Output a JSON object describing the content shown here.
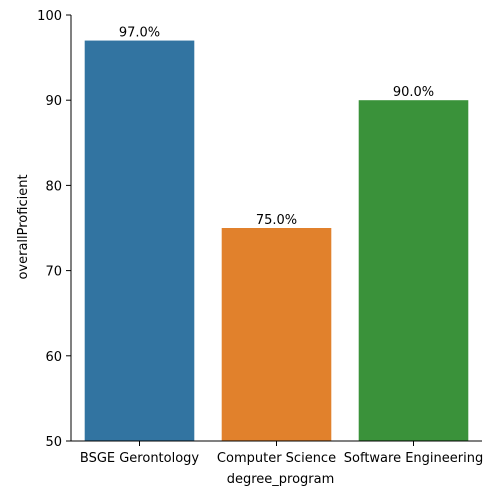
{
  "chart_data": {
    "type": "bar",
    "categories": [
      "BSGE Gerontology",
      "Computer Science",
      "Software Engineering"
    ],
    "values": [
      97.0,
      75.0,
      90.0
    ],
    "data_labels": [
      "97.0%",
      "75.0%",
      "90.0%"
    ],
    "colors": [
      "#3274a1",
      "#e1812c",
      "#3a923a"
    ],
    "xlabel": "degree_program",
    "ylabel": "overallProficient",
    "ylim": [
      50,
      100
    ],
    "yticks": [
      50,
      60,
      70,
      80,
      90,
      100
    ],
    "grid": false
  }
}
